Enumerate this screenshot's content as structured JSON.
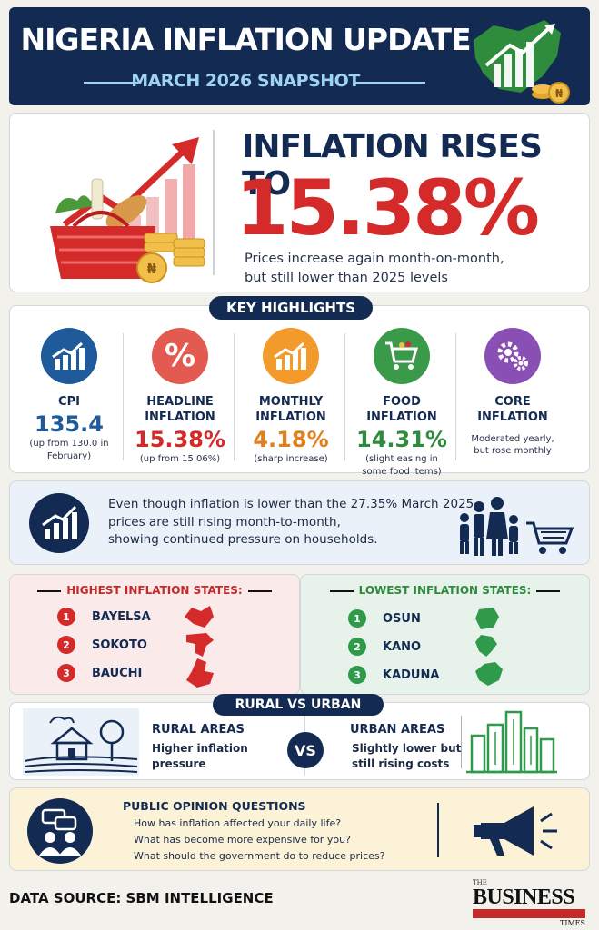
{
  "header": {
    "title": "NIGERIA INFLATION UPDATE",
    "subtitle": "MARCH 2026 SNAPSHOT"
  },
  "hero": {
    "headline": "INFLATION RISES TO",
    "rate": "15.38%",
    "line1": "Prices increase again month-on-month,",
    "line2": "but still lower than 2025 levels",
    "coin_symbol": "₦"
  },
  "highlights": {
    "label": "KEY HIGHLIGHTS",
    "items": [
      {
        "name1": "CPI",
        "name2": "",
        "value": "135.4",
        "note1": "(up from 130.0 in",
        "note2": "February)",
        "color": "#1f5a9a",
        "icon": "chart-up-icon"
      },
      {
        "name1": "HEADLINE",
        "name2": "INFLATION",
        "value": "15.38%",
        "note1": "(up from 15.06%)",
        "note2": "",
        "color": "#e35a50",
        "icon": "percent-icon"
      },
      {
        "name1": "MONTHLY",
        "name2": "INFLATION",
        "value": "4.18%",
        "note1": "(sharp increase)",
        "note2": "",
        "color": "#f29a2a",
        "icon": "chart-up-icon"
      },
      {
        "name1": "FOOD",
        "name2": "INFLATION",
        "value": "14.31%",
        "note1": "(slight easing in",
        "note2": "some food items)",
        "color": "#3a9a4a",
        "icon": "shopping-cart-icon"
      },
      {
        "name1": "CORE",
        "name2": "INFLATION",
        "value": "",
        "note1": "Moderated yearly,",
        "note2": "but rose monthly",
        "color": "#8a4fb5",
        "icon": "gears-icon"
      }
    ]
  },
  "pressure": {
    "line1": "Even though inflation is lower than the 27.35%  March 2025",
    "line2": "prices are still rising month-to-month,",
    "line3": "showing continued pressure on households."
  },
  "states": {
    "highest_label": "HIGHEST INFLATION STATES:",
    "lowest_label": "LOWEST INFLATION STATES:",
    "highest": [
      {
        "rank": "1",
        "name": "BAYELSA"
      },
      {
        "rank": "2",
        "name": "SOKOTO"
      },
      {
        "rank": "3",
        "name": "BAUCHI"
      }
    ],
    "lowest": [
      {
        "rank": "1",
        "name": "OSUN"
      },
      {
        "rank": "2",
        "name": "KANO"
      },
      {
        "rank": "3",
        "name": "KADUNA"
      }
    ],
    "colors": {
      "high": "#d42a2a",
      "low": "#2e9a4a"
    }
  },
  "rural_urban": {
    "label": "RURAL VS URBAN",
    "rural_title": "RURAL AREAS",
    "rural_l1": "Higher inflation",
    "rural_l2": "pressure",
    "vs": "VS",
    "urban_title": "URBAN AREAS",
    "urban_l1": "Slightly lower but",
    "urban_l2": "still rising costs"
  },
  "opinion": {
    "title": "PUBLIC OPINION QUESTIONS",
    "q1": "How has inflation affected your daily life?",
    "q2": "What has become more expensive for you?",
    "q3": "What should the government do to reduce prices?"
  },
  "footer": {
    "source": "DATA SOURCE: SBM INTELLIGENCE",
    "logo_the": "THE",
    "logo_business": "BUSINESS",
    "logo_times": "TIMES"
  }
}
